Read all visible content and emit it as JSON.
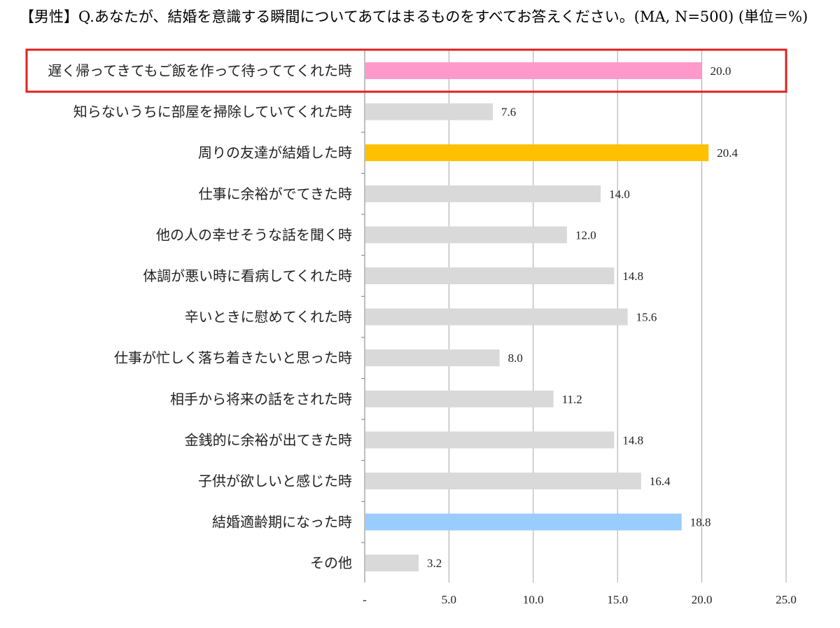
{
  "chart_data": {
    "type": "bar",
    "orientation": "horizontal",
    "title": "【男性】Q.あなたが、結婚を意識する瞬間についてあてはまるものをすべてお答えください。(MA, N=500) (単位＝%)",
    "categories": [
      "遅く帰ってきてもご飯を作って待っててくれた時",
      "知らないうちに部屋を掃除していてくれた時",
      "周りの友達が結婚した時",
      "仕事に余裕がでてきた時",
      "他の人の幸せそうな話を聞く時",
      "体調が悪い時に看病してくれた時",
      "辛いときに慰めてくれた時",
      "仕事が忙しく落ち着きたいと思った時",
      "相手から将来の話をされた時",
      "金銭的に余裕が出てきた時",
      "子供が欲しいと感じた時",
      "結婚適齢期になった時",
      "その他"
    ],
    "values": [
      20.0,
      7.6,
      20.4,
      14.0,
      12.0,
      14.8,
      15.6,
      8.0,
      11.2,
      14.8,
      16.4,
      18.8,
      3.2
    ],
    "value_labels": [
      "20.0",
      "7.6",
      "20.4",
      "14.0",
      "12.0",
      "14.8",
      "15.6",
      "8.0",
      "11.2",
      "14.8",
      "16.4",
      "18.8",
      "3.2"
    ],
    "bar_colors": [
      "#ff99cc",
      "#d9d9d9",
      "#ffc000",
      "#d9d9d9",
      "#d9d9d9",
      "#d9d9d9",
      "#d9d9d9",
      "#d9d9d9",
      "#d9d9d9",
      "#d9d9d9",
      "#d9d9d9",
      "#99ccff",
      "#d9d9d9"
    ],
    "highlight_index": 0,
    "highlight_color": "#e02020",
    "xlim": [
      0,
      25
    ],
    "xticks": [
      0,
      5,
      10,
      15,
      20,
      25
    ],
    "xtick_labels": [
      "-",
      "5.0",
      "10.0",
      "15.0",
      "20.0",
      "25.0"
    ],
    "grid": true,
    "gridline_color": "#a6a6a6"
  }
}
